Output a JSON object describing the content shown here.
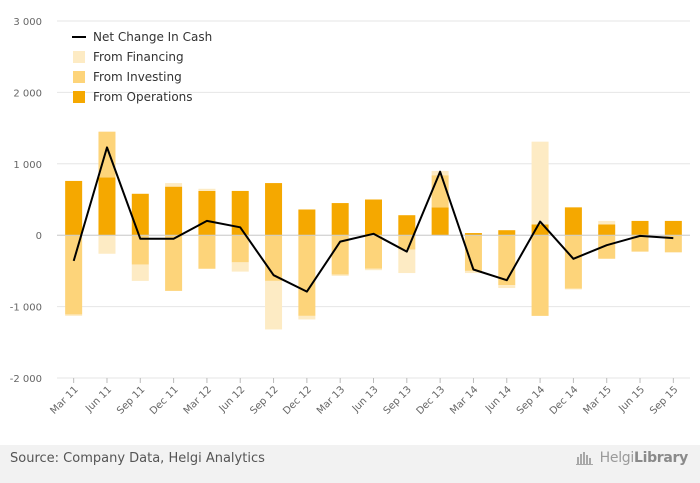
{
  "chart_data": {
    "type": "bar",
    "stacked": true,
    "title": "",
    "xlabel": "",
    "ylabel": "",
    "ylim": [
      -2000,
      3000
    ],
    "yticks": [
      3000,
      2000,
      1000,
      0,
      -1000,
      -2000
    ],
    "ytick_labels": [
      "3 000",
      "2 000",
      "1 000",
      "0",
      "-1 000",
      "-2 000"
    ],
    "categories": [
      "Mar 11",
      "Jun 11",
      "Sep 11",
      "Dec 11",
      "Mar 12",
      "Jun 12",
      "Sep 12",
      "Dec 12",
      "Mar 13",
      "Jun 13",
      "Sep 13",
      "Dec 13",
      "Mar 14",
      "Jun 14",
      "Sep 14",
      "Dec 14",
      "Mar 15",
      "Jun 15",
      "Sep 15"
    ],
    "series": [
      {
        "name": "From Operations",
        "kind": "bar",
        "color": "#f5a800",
        "values": [
          760,
          810,
          580,
          680,
          620,
          620,
          730,
          360,
          450,
          500,
          280,
          390,
          30,
          70,
          150,
          390,
          150,
          200,
          200
        ]
      },
      {
        "name": "From Investing",
        "kind": "bar",
        "color": "#fdd47a",
        "values": [
          -1110,
          640,
          -410,
          -780,
          -470,
          -380,
          -640,
          -1130,
          -550,
          -470,
          -200,
          450,
          -500,
          -700,
          -1130,
          -750,
          -330,
          -230,
          -240
        ]
      },
      {
        "name": "From Financing",
        "kind": "bar",
        "color": "#fdebc4",
        "values": [
          -20,
          -260,
          -230,
          50,
          30,
          -130,
          -680,
          -50,
          -20,
          -20,
          -330,
          60,
          -30,
          -40,
          1160,
          -10,
          50,
          0,
          0
        ]
      },
      {
        "name": "Net Change In Cash",
        "kind": "line",
        "color": "#000000",
        "values": [
          -360,
          1230,
          -50,
          -50,
          200,
          110,
          -560,
          -790,
          -90,
          20,
          -230,
          890,
          -480,
          -630,
          190,
          -330,
          -140,
          -10,
          -40
        ]
      }
    ],
    "legend": {
      "position": "top-left",
      "items": [
        "Net Change In Cash",
        "From Financing",
        "From Investing",
        "From Operations"
      ]
    },
    "grid": {
      "y": true,
      "color": "#e6e6e6"
    }
  },
  "footer": {
    "source": "Source: Company Data, Helgi Analytics",
    "brand_name_light": "Helgi",
    "brand_name_bold": "Library"
  }
}
